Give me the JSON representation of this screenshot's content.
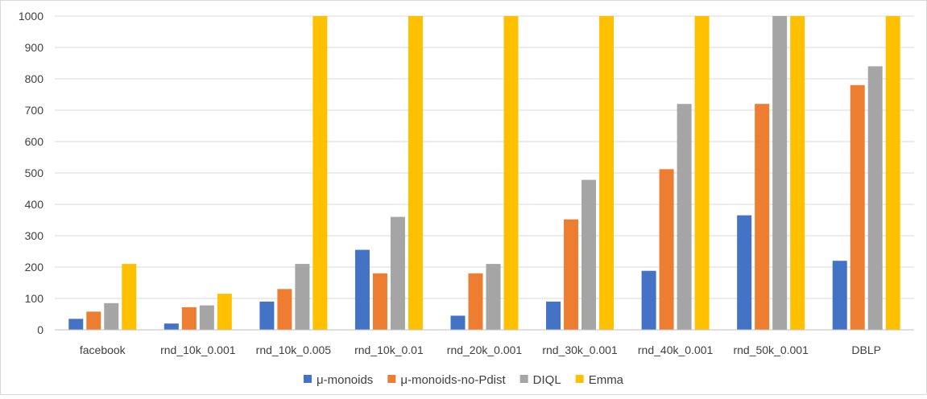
{
  "chart_data": {
    "type": "bar",
    "title": "",
    "xlabel": "",
    "ylabel": "",
    "ylim": [
      0,
      1000
    ],
    "yticks": [
      0,
      100,
      200,
      300,
      400,
      500,
      600,
      700,
      800,
      900,
      1000
    ],
    "grid": "horizontal",
    "legend_position": "bottom",
    "categories": [
      "facebook",
      "rnd_10k_0.001",
      "rnd_10k_0.005",
      "rnd_10k_0.01",
      "rnd_20k_0.001",
      "rnd_30k_0.001",
      "rnd_40k_0.001",
      "rnd_50k_0.001",
      "DBLP"
    ],
    "series": [
      {
        "name": "μ-monoids",
        "color": "#4472C4",
        "values": [
          35,
          20,
          90,
          255,
          45,
          90,
          188,
          365,
          220
        ]
      },
      {
        "name": "μ-monoids-no-Pdist",
        "color": "#ED7D31",
        "values": [
          58,
          72,
          130,
          180,
          180,
          352,
          512,
          720,
          780
        ]
      },
      {
        "name": "DIQL",
        "color": "#A5A5A5",
        "values": [
          85,
          78,
          210,
          360,
          210,
          478,
          720,
          1000,
          840
        ]
      },
      {
        "name": "Emma",
        "color": "#FFC000",
        "values": [
          210,
          115,
          1000,
          1000,
          1000,
          1000,
          1000,
          1000,
          1000
        ]
      }
    ]
  }
}
